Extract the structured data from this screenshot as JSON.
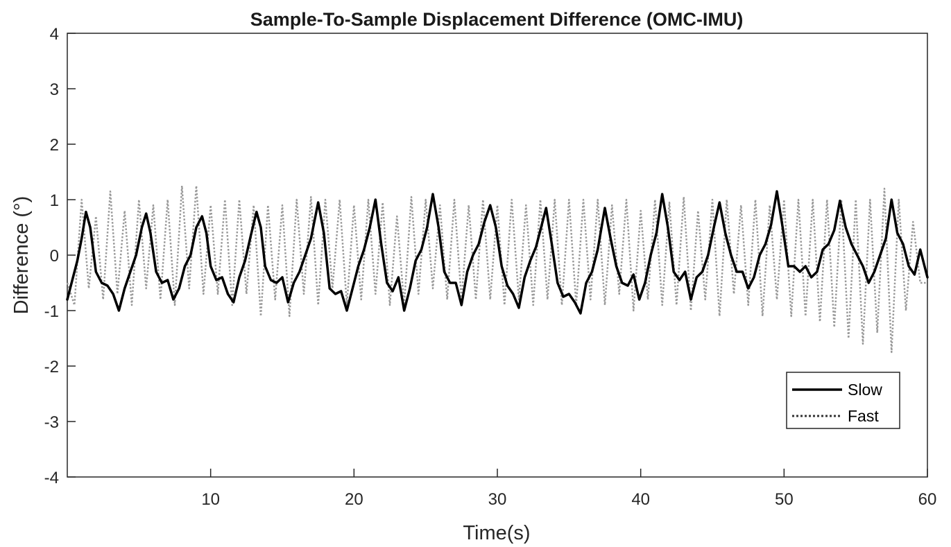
{
  "chart_data": {
    "type": "line",
    "title": "Sample-To-Sample Displacement Difference (OMC-IMU)",
    "xlabel": "Time(s)",
    "ylabel": "Difference (°)",
    "xlim": [
      0,
      60
    ],
    "ylim": [
      -4,
      4
    ],
    "xticks": [
      10,
      20,
      30,
      40,
      50,
      60
    ],
    "yticks": [
      -4,
      -3,
      -2,
      -1,
      0,
      1,
      2,
      3,
      4
    ],
    "grid": false,
    "legend_position": "bottom-right",
    "series": [
      {
        "name": "Slow",
        "style": "solid",
        "color": "#000000",
        "x": [
          0,
          0.3,
          0.7,
          1.0,
          1.3,
          1.6,
          2.0,
          2.4,
          2.8,
          3.2,
          3.6,
          4.0,
          4.4,
          4.8,
          5.2,
          5.5,
          5.8,
          6.2,
          6.6,
          7.0,
          7.4,
          7.8,
          8.2,
          8.6,
          9.0,
          9.4,
          9.7,
          10.0,
          10.4,
          10.8,
          11.2,
          11.6,
          12.0,
          12.4,
          12.8,
          13.2,
          13.5,
          13.8,
          14.2,
          14.6,
          15.0,
          15.4,
          15.8,
          16.2,
          16.6,
          17.0,
          17.5,
          17.9,
          18.3,
          18.7,
          19.1,
          19.5,
          19.9,
          20.3,
          20.7,
          21.1,
          21.5,
          21.9,
          22.3,
          22.7,
          23.1,
          23.5,
          23.9,
          24.3,
          24.7,
          25.1,
          25.5,
          25.9,
          26.3,
          26.7,
          27.1,
          27.5,
          27.9,
          28.3,
          28.7,
          29.1,
          29.5,
          29.9,
          30.3,
          30.7,
          31.1,
          31.5,
          31.9,
          32.3,
          32.7,
          33.1,
          33.4,
          33.8,
          34.2,
          34.6,
          35.0,
          35.4,
          35.8,
          36.2,
          36.6,
          37.0,
          37.5,
          37.9,
          38.3,
          38.7,
          39.1,
          39.5,
          39.9,
          40.3,
          40.7,
          41.1,
          41.5,
          41.9,
          42.3,
          42.7,
          43.1,
          43.5,
          43.9,
          44.3,
          44.7,
          45.1,
          45.5,
          45.9,
          46.3,
          46.7,
          47.1,
          47.5,
          47.9,
          48.3,
          48.7,
          49.1,
          49.5,
          49.9,
          50.3,
          50.7,
          51.1,
          51.5,
          51.9,
          52.3,
          52.7,
          53.1,
          53.5,
          53.9,
          54.3,
          54.7,
          55.1,
          55.5,
          55.9,
          56.3,
          56.7,
          57.1,
          57.5,
          57.9,
          58.3,
          58.7,
          59.1,
          59.5,
          60.0
        ],
        "y": [
          -0.8,
          -0.5,
          -0.1,
          0.3,
          0.78,
          0.5,
          -0.3,
          -0.5,
          -0.55,
          -0.7,
          -1.0,
          -0.6,
          -0.3,
          0.0,
          0.5,
          0.75,
          0.4,
          -0.3,
          -0.5,
          -0.45,
          -0.8,
          -0.6,
          -0.2,
          0.0,
          0.5,
          0.7,
          0.4,
          -0.2,
          -0.45,
          -0.4,
          -0.7,
          -0.85,
          -0.4,
          -0.1,
          0.35,
          0.78,
          0.5,
          -0.2,
          -0.45,
          -0.5,
          -0.4,
          -0.85,
          -0.5,
          -0.3,
          0.0,
          0.3,
          0.95,
          0.4,
          -0.6,
          -0.7,
          -0.65,
          -1.0,
          -0.6,
          -0.2,
          0.1,
          0.5,
          1.0,
          0.2,
          -0.5,
          -0.65,
          -0.4,
          -1.0,
          -0.6,
          -0.1,
          0.1,
          0.5,
          1.1,
          0.5,
          -0.3,
          -0.5,
          -0.5,
          -0.9,
          -0.3,
          0.0,
          0.2,
          0.6,
          0.9,
          0.5,
          -0.2,
          -0.55,
          -0.7,
          -0.95,
          -0.4,
          -0.1,
          0.15,
          0.55,
          0.85,
          0.2,
          -0.5,
          -0.75,
          -0.7,
          -0.85,
          -1.05,
          -0.5,
          -0.3,
          0.1,
          0.85,
          0.3,
          -0.2,
          -0.5,
          -0.55,
          -0.35,
          -0.8,
          -0.5,
          0.0,
          0.4,
          1.1,
          0.5,
          -0.3,
          -0.45,
          -0.3,
          -0.8,
          -0.4,
          -0.3,
          0.0,
          0.5,
          0.95,
          0.4,
          0.0,
          -0.3,
          -0.3,
          -0.6,
          -0.4,
          0.0,
          0.2,
          0.55,
          1.15,
          0.5,
          -0.2,
          -0.2,
          -0.3,
          -0.2,
          -0.4,
          -0.3,
          0.1,
          0.2,
          0.45,
          0.98,
          0.5,
          0.2,
          0.0,
          -0.2,
          -0.5,
          -0.3,
          0.0,
          0.3,
          1.0,
          0.4,
          0.2,
          -0.2,
          -0.35,
          0.1,
          -0.4
        ]
      },
      {
        "name": "Fast",
        "style": "dotted",
        "color": "#999999",
        "x": [
          0,
          0.5,
          1.0,
          1.5,
          2.0,
          2.5,
          3.0,
          3.5,
          4.0,
          4.5,
          5.0,
          5.5,
          6.0,
          6.5,
          7.0,
          7.5,
          8.0,
          8.5,
          9.0,
          9.5,
          10.0,
          10.5,
          11.0,
          11.5,
          12.0,
          12.5,
          13.0,
          13.5,
          14.0,
          14.5,
          15.0,
          15.5,
          16.0,
          16.5,
          17.0,
          17.5,
          18.0,
          18.5,
          19.0,
          19.5,
          20.0,
          20.5,
          21.0,
          21.5,
          22.0,
          22.5,
          23.0,
          23.5,
          24.0,
          24.5,
          25.0,
          25.5,
          26.0,
          26.5,
          27.0,
          27.5,
          28.0,
          28.5,
          29.0,
          29.5,
          30.0,
          30.5,
          31.0,
          31.5,
          32.0,
          32.5,
          33.0,
          33.5,
          34.0,
          34.5,
          35.0,
          35.5,
          36.0,
          36.5,
          37.0,
          37.5,
          38.0,
          38.5,
          39.0,
          39.5,
          40.0,
          40.5,
          41.0,
          41.5,
          42.0,
          42.5,
          43.0,
          43.5,
          44.0,
          44.5,
          45.0,
          45.5,
          46.0,
          46.5,
          47.0,
          47.5,
          48.0,
          48.5,
          49.0,
          49.5,
          50.0,
          50.5,
          51.0,
          51.5,
          52.0,
          52.5,
          53.0,
          53.5,
          54.0,
          54.5,
          55.0,
          55.5,
          56.0,
          56.5,
          57.0,
          57.5,
          58.0,
          58.5,
          59.0,
          59.5,
          60.0
        ],
        "y": [
          -0.5,
          -0.9,
          1.0,
          -0.6,
          0.7,
          -0.8,
          1.15,
          -0.7,
          0.8,
          -0.9,
          1.0,
          -0.6,
          0.9,
          -0.8,
          1.0,
          -0.9,
          1.25,
          -0.6,
          1.25,
          -0.7,
          0.9,
          -0.7,
          1.0,
          -0.9,
          1.0,
          -0.7,
          0.9,
          -1.1,
          0.9,
          -0.8,
          0.9,
          -1.1,
          1.0,
          -0.7,
          1.05,
          -0.9,
          1.0,
          -0.6,
          1.0,
          -0.9,
          0.9,
          -0.8,
          1.0,
          -0.7,
          0.95,
          -0.9,
          0.7,
          -0.9,
          1.05,
          -0.7,
          1.0,
          -0.6,
          0.9,
          -0.8,
          1.0,
          -0.8,
          0.9,
          -0.8,
          1.0,
          -0.8,
          0.9,
          -0.9,
          1.0,
          -0.8,
          0.9,
          -0.9,
          1.0,
          -0.8,
          1.0,
          -0.9,
          1.0,
          -0.9,
          1.0,
          -0.8,
          1.0,
          -0.9,
          0.9,
          -0.7,
          1.0,
          -1.0,
          0.8,
          -0.8,
          1.0,
          -0.9,
          0.95,
          -0.9,
          1.05,
          -1.0,
          0.8,
          -0.8,
          1.0,
          -1.1,
          1.0,
          -0.7,
          0.9,
          -0.9,
          1.0,
          -1.1,
          0.9,
          -0.8,
          1.0,
          -1.1,
          1.0,
          -1.1,
          1.0,
          -1.2,
          1.0,
          -1.3,
          1.0,
          -1.5,
          1.0,
          -1.6,
          1.0,
          -1.4,
          1.2,
          -1.75,
          1.0,
          -1.0,
          0.6,
          -0.5,
          -0.5
        ]
      }
    ]
  }
}
